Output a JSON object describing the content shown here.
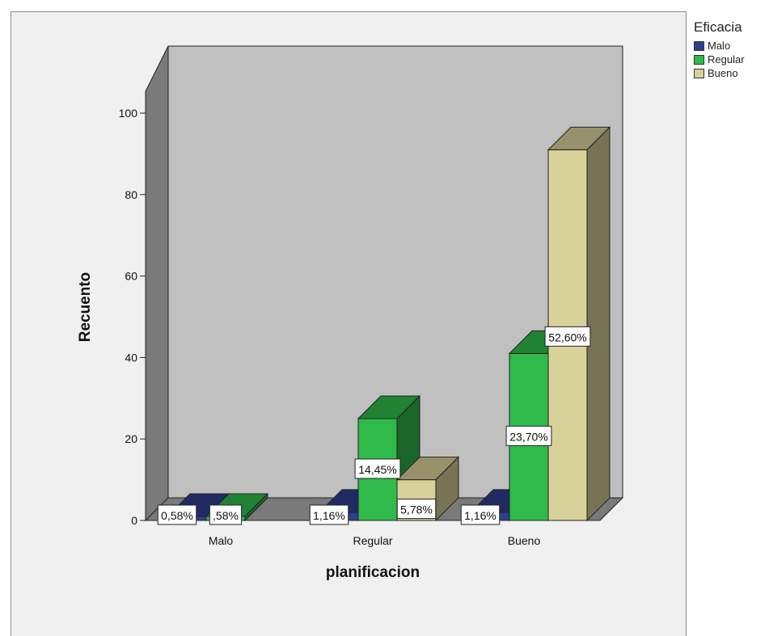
{
  "chart_data": {
    "type": "bar",
    "subtype": "3d-clustered",
    "xlabel": "planificacion",
    "ylabel": "Recuento",
    "categories": [
      "Malo",
      "Regular",
      "Bueno"
    ],
    "ylim": [
      0,
      100
    ],
    "yticks": [
      0,
      20,
      40,
      60,
      80,
      100
    ],
    "legend_title": "Eficacia",
    "legend_position": "top-right",
    "series": [
      {
        "name": "Malo",
        "color": "#2e3e8e",
        "values": [
          1,
          2,
          2
        ],
        "labels": [
          "0,58%",
          "1,16%",
          "1,16%"
        ]
      },
      {
        "name": "Regular",
        "color": "#2fba4a",
        "values": [
          1,
          25,
          41
        ],
        "labels": [
          ",58%",
          "14,45%",
          "23,70%"
        ]
      },
      {
        "name": "Bueno",
        "color": "#d8d19a",
        "values": [
          0,
          10,
          91
        ],
        "labels": [
          "",
          "5,78%",
          "52,60%"
        ]
      }
    ]
  }
}
